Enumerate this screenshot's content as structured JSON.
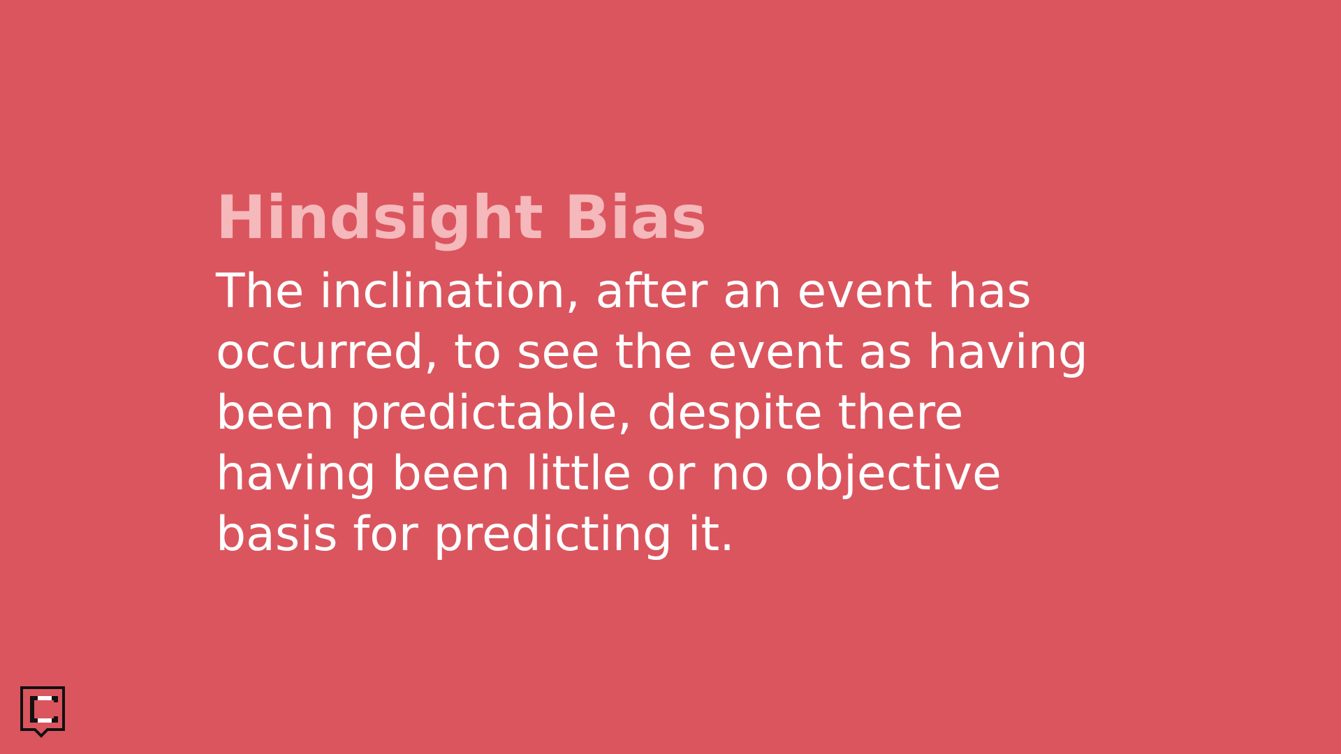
{
  "slide": {
    "background_color": "#db555e",
    "title": "Hindsight Bias",
    "title_color": "#f5b8bb",
    "definition": "The inclination, after an event has occurred, to see the event as having been predictable, despite there having been little or no objective basis for predicting it.",
    "definition_color": "#ffffff"
  },
  "logo": {
    "icon": "speech-bubble-c-logo-icon",
    "letter": "C"
  }
}
